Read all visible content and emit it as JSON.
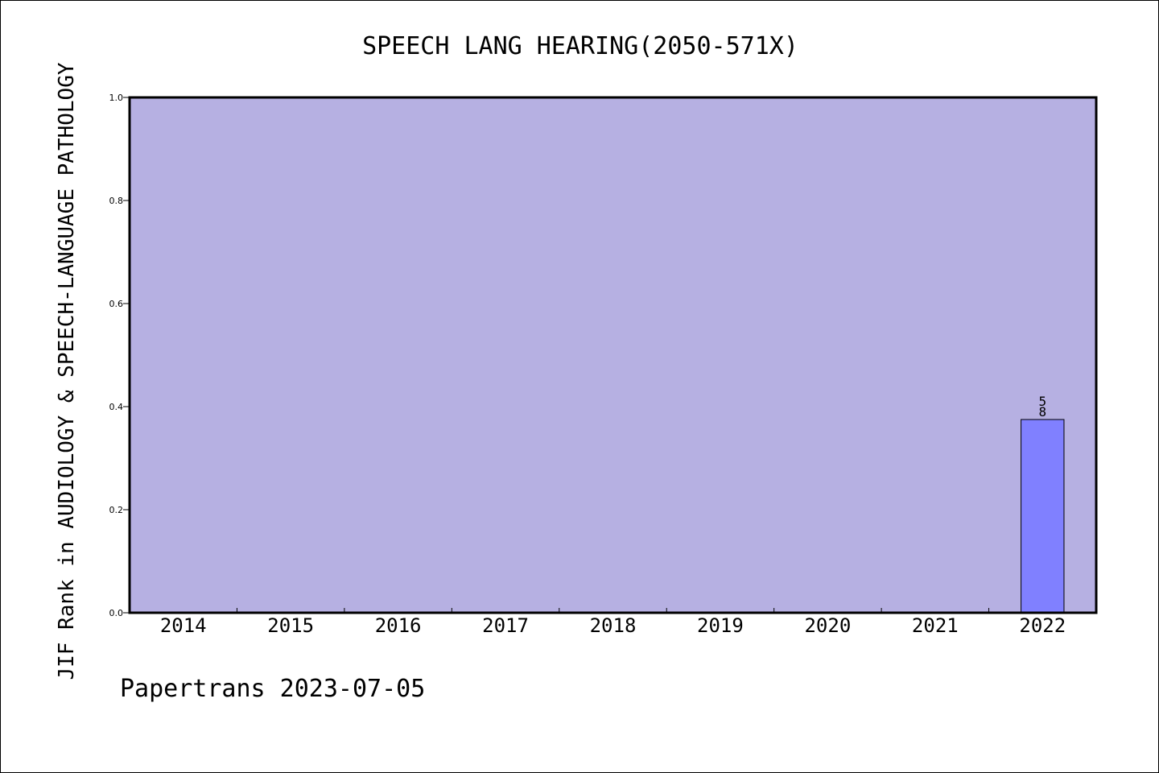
{
  "chart_data": {
    "type": "bar",
    "title": "SPEECH LANG HEARING(2050-571X)",
    "ylabel": "JIF Rank in AUDIOLOGY & SPEECH-LANGUAGE PATHOLOGY",
    "xlabel": "",
    "footer": "Papertrans 2023-07-05",
    "categories": [
      "2014",
      "2015",
      "2016",
      "2017",
      "2018",
      "2019",
      "2020",
      "2021",
      "2022"
    ],
    "values": [
      null,
      null,
      null,
      null,
      null,
      null,
      null,
      null,
      0.375
    ],
    "bar_labels": [
      "",
      "",
      "",
      "",
      "",
      "",
      "",
      "",
      "5\n8"
    ],
    "ylim": [
      0,
      1.0
    ],
    "yticks": [
      "0.0",
      "0.2",
      "0.4",
      "0.6",
      "0.8",
      "1.0"
    ],
    "grid": false,
    "colors": {
      "plot_background": "#b6b0e2",
      "bar_fill": "#8080ff",
      "axis": "#000000"
    }
  }
}
